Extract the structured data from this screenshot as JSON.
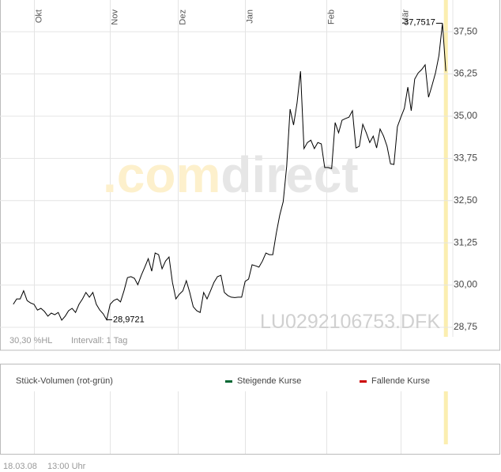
{
  "chart_data": {
    "type": "line",
    "instrument": "LU0292106753.DFK",
    "watermark": {
      "prefix": ".com",
      "suffix": "direct"
    },
    "range_info": "30,30 %HL",
    "interval": "Intervall: 1 Tag",
    "color": "#000000",
    "values": [
      29.43,
      29.59,
      29.59,
      29.83,
      29.54,
      29.47,
      29.43,
      29.26,
      29.31,
      29.22,
      29.08,
      29.17,
      29.12,
      29.19,
      28.96,
      29.08,
      29.24,
      29.31,
      29.19,
      29.43,
      29.59,
      29.78,
      29.64,
      29.78,
      29.43,
      29.26,
      29.15,
      28.9721,
      29.43,
      29.54,
      29.59,
      29.5,
      29.83,
      30.22,
      30.25,
      30.2,
      30.01,
      30.29,
      30.53,
      30.78,
      30.41,
      30.95,
      30.9,
      30.48,
      30.71,
      30.83,
      30.08,
      29.59,
      29.73,
      29.83,
      30.13,
      29.78,
      29.36,
      29.24,
      29.19,
      29.78,
      29.59,
      29.83,
      30.08,
      30.25,
      30.29,
      29.78,
      29.69,
      29.64,
      29.63,
      29.64,
      29.64,
      30.11,
      30.18,
      30.6,
      30.57,
      30.53,
      30.71,
      30.95,
      30.9,
      30.9,
      31.53,
      32.07,
      32.47,
      33.52,
      35.21,
      34.74,
      35.39,
      36.33,
      34.04,
      34.22,
      34.29,
      34.04,
      34.22,
      34.18,
      33.48,
      33.48,
      33.45,
      34.81,
      34.51,
      34.88,
      34.93,
      34.97,
      35.16,
      34.06,
      34.11,
      34.76,
      34.51,
      34.22,
      34.41,
      34.06,
      34.62,
      34.41,
      34.11,
      33.59,
      33.57,
      34.69,
      34.97,
      35.23,
      35.86,
      35.16,
      36.1,
      36.28,
      36.38,
      36.52,
      35.56,
      35.91,
      36.28,
      36.8,
      37.7517,
      36.33
    ],
    "value_labels": [
      null,
      null,
      null,
      null,
      null,
      null,
      null,
      null,
      null,
      null,
      null,
      null,
      null,
      null,
      null,
      null,
      null,
      null,
      null,
      null,
      null,
      null,
      null,
      null,
      null,
      null,
      null,
      "28,9721",
      null,
      null,
      null,
      null,
      null,
      null,
      null,
      null,
      null,
      null,
      null,
      null,
      null,
      null,
      null,
      null,
      null,
      null,
      null,
      null,
      null,
      null,
      null,
      null,
      null,
      null,
      null,
      null,
      null,
      null,
      null,
      null,
      null,
      null,
      null,
      null,
      null,
      null,
      null,
      null,
      null,
      null,
      null,
      null,
      null,
      null,
      null,
      null,
      null,
      null,
      null,
      null,
      null,
      null,
      null,
      null,
      null,
      null,
      null,
      null,
      null,
      null,
      null,
      null,
      null,
      null,
      null,
      null,
      null,
      null,
      null,
      null,
      null,
      null,
      null,
      null,
      null,
      null,
      null,
      null,
      null,
      null,
      null,
      null,
      null,
      null,
      null,
      null,
      null,
      null,
      null,
      null,
      null,
      null,
      null,
      null,
      "37,7517",
      null
    ],
    "xlim": [
      -2,
      127
    ],
    "xticks": [
      {
        "value": 6,
        "label": "Okt"
      },
      {
        "value": 28,
        "label": "Nov"
      },
      {
        "value": 47.5,
        "label": "Dez"
      },
      {
        "value": 67,
        "label": "Jan"
      },
      {
        "value": 90.5,
        "label": "Feb"
      },
      {
        "value": 112,
        "label": "Mär"
      }
    ],
    "ylim": [
      28.07,
      38.44
    ],
    "yticks": [
      {
        "value": 37.5,
        "label": "37,50"
      },
      {
        "value": 36.25,
        "label": "36,25"
      },
      {
        "value": 35,
        "label": "35,00"
      },
      {
        "value": 33.75,
        "label": "33,75"
      },
      {
        "value": 32.5,
        "label": "32,50"
      },
      {
        "value": 31.25,
        "label": "31,25"
      },
      {
        "value": 30,
        "label": "30,00"
      },
      {
        "value": 28.75,
        "label": "28,75"
      }
    ],
    "grid": true
  },
  "volume_panel": {
    "title": "Stück-Volumen (rot-grün)",
    "legend": [
      {
        "name": "Steigende Kurse",
        "color": "#006633"
      },
      {
        "name": "Fallende Kurse",
        "color": "#cc0000"
      }
    ]
  },
  "footer": {
    "date": "18.03.08",
    "time": "13:00 Uhr"
  }
}
